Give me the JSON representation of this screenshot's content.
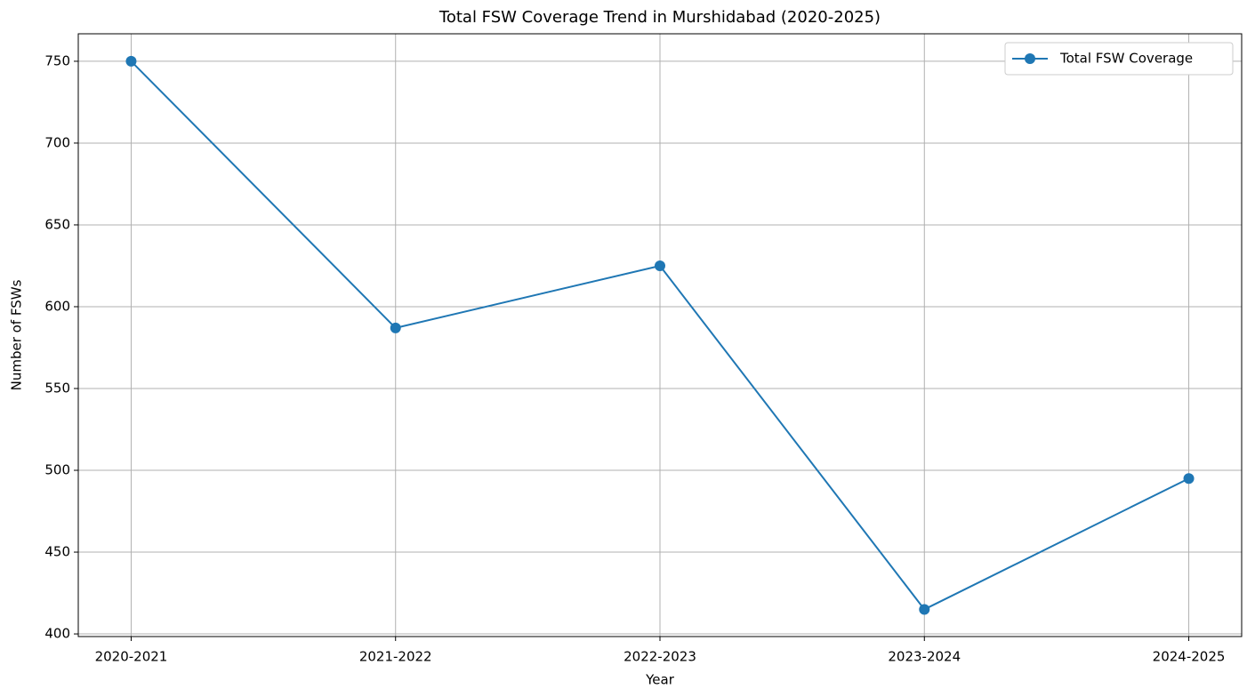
{
  "chart_data": {
    "type": "line",
    "title": "Total FSW Coverage Trend in Murshidabad (2020-2025)",
    "x_label": "Year",
    "y_label": "Number of FSWs",
    "categories": [
      "2020-2021",
      "2021-2022",
      "2022-2023",
      "2023-2024",
      "2024-2025"
    ],
    "series": [
      {
        "name": "Total FSW Coverage",
        "color": "#1f77b4",
        "values": [
          750,
          587,
          625,
          415,
          495
        ]
      }
    ],
    "ylim": [
      398.4,
      766.8
    ],
    "yticks": [
      400,
      450,
      500,
      550,
      600,
      650,
      700,
      750
    ],
    "grid": true,
    "legend": "upper right"
  }
}
